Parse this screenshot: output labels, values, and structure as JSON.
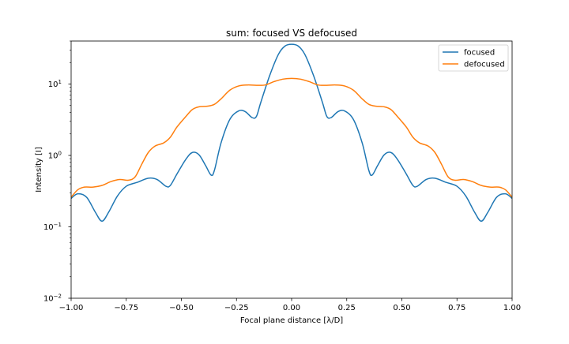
{
  "chart_data": {
    "type": "line",
    "title": "sum: focused VS defocused",
    "xlabel": "Focal plane distance [λ/D]",
    "ylabel": "Intensity [I]",
    "xlim": [
      -1.0,
      1.0
    ],
    "ylim": [
      0.01,
      40
    ],
    "yscale": "log",
    "grid": false,
    "legend_position": "top-right",
    "x_ticks": [
      -1.0,
      -0.75,
      -0.5,
      -0.25,
      0.0,
      0.25,
      0.5,
      0.75,
      1.0
    ],
    "x_tick_labels": [
      "−1.00",
      "−0.75",
      "−0.50",
      "−0.25",
      "0.00",
      "0.25",
      "0.50",
      "0.75",
      "1.00"
    ],
    "y_ticks": [
      0.01,
      0.1,
      1,
      10
    ],
    "y_tick_labels": [
      {
        "base": "10",
        "exp": "−2"
      },
      {
        "base": "10",
        "exp": "−1"
      },
      {
        "base": "10",
        "exp": "0"
      },
      {
        "base": "10",
        "exp": "1"
      }
    ],
    "series": [
      {
        "name": "focused",
        "color": "#1f77b4",
        "points": [
          [
            -1.0,
            0.25
          ],
          [
            -0.97,
            0.29
          ],
          [
            -0.93,
            0.26
          ],
          [
            -0.89,
            0.16
          ],
          [
            -0.86,
            0.12
          ],
          [
            -0.83,
            0.16
          ],
          [
            -0.79,
            0.27
          ],
          [
            -0.75,
            0.37
          ],
          [
            -0.7,
            0.42
          ],
          [
            -0.65,
            0.48
          ],
          [
            -0.61,
            0.46
          ],
          [
            -0.57,
            0.37
          ],
          [
            -0.55,
            0.38
          ],
          [
            -0.52,
            0.55
          ],
          [
            -0.48,
            0.88
          ],
          [
            -0.45,
            1.1
          ],
          [
            -0.42,
            1.02
          ],
          [
            -0.39,
            0.72
          ],
          [
            -0.365,
            0.53
          ],
          [
            -0.35,
            0.62
          ],
          [
            -0.32,
            1.5
          ],
          [
            -0.28,
            3.2
          ],
          [
            -0.24,
            4.2
          ],
          [
            -0.21,
            4.1
          ],
          [
            -0.18,
            3.4
          ],
          [
            -0.16,
            3.5
          ],
          [
            -0.14,
            5.5
          ],
          [
            -0.1,
            13
          ],
          [
            -0.06,
            26
          ],
          [
            -0.03,
            34
          ],
          [
            0.0,
            36
          ],
          [
            0.03,
            34
          ],
          [
            0.06,
            26
          ],
          [
            0.1,
            13
          ],
          [
            0.14,
            5.5
          ],
          [
            0.16,
            3.5
          ],
          [
            0.18,
            3.4
          ],
          [
            0.21,
            4.1
          ],
          [
            0.24,
            4.2
          ],
          [
            0.28,
            3.2
          ],
          [
            0.32,
            1.5
          ],
          [
            0.35,
            0.62
          ],
          [
            0.365,
            0.53
          ],
          [
            0.39,
            0.72
          ],
          [
            0.42,
            1.02
          ],
          [
            0.45,
            1.1
          ],
          [
            0.48,
            0.88
          ],
          [
            0.52,
            0.55
          ],
          [
            0.55,
            0.38
          ],
          [
            0.57,
            0.37
          ],
          [
            0.61,
            0.46
          ],
          [
            0.65,
            0.48
          ],
          [
            0.7,
            0.42
          ],
          [
            0.75,
            0.37
          ],
          [
            0.79,
            0.27
          ],
          [
            0.83,
            0.16
          ],
          [
            0.86,
            0.12
          ],
          [
            0.89,
            0.16
          ],
          [
            0.93,
            0.26
          ],
          [
            0.97,
            0.29
          ],
          [
            1.0,
            0.25
          ]
        ]
      },
      {
        "name": "defocused",
        "color": "#ff7f0e",
        "points": [
          [
            -1.0,
            0.26
          ],
          [
            -0.97,
            0.33
          ],
          [
            -0.94,
            0.36
          ],
          [
            -0.9,
            0.36
          ],
          [
            -0.86,
            0.38
          ],
          [
            -0.82,
            0.43
          ],
          [
            -0.78,
            0.46
          ],
          [
            -0.74,
            0.45
          ],
          [
            -0.71,
            0.5
          ],
          [
            -0.68,
            0.75
          ],
          [
            -0.65,
            1.1
          ],
          [
            -0.62,
            1.35
          ],
          [
            -0.58,
            1.5
          ],
          [
            -0.55,
            1.8
          ],
          [
            -0.52,
            2.5
          ],
          [
            -0.48,
            3.5
          ],
          [
            -0.45,
            4.4
          ],
          [
            -0.42,
            4.8
          ],
          [
            -0.38,
            4.9
          ],
          [
            -0.35,
            5.2
          ],
          [
            -0.32,
            6.2
          ],
          [
            -0.28,
            8.2
          ],
          [
            -0.24,
            9.4
          ],
          [
            -0.2,
            9.7
          ],
          [
            -0.16,
            9.6
          ],
          [
            -0.12,
            9.7
          ],
          [
            -0.08,
            10.8
          ],
          [
            -0.04,
            11.7
          ],
          [
            0.0,
            12.0
          ],
          [
            0.04,
            11.7
          ],
          [
            0.08,
            10.8
          ],
          [
            0.12,
            9.7
          ],
          [
            0.16,
            9.6
          ],
          [
            0.2,
            9.7
          ],
          [
            0.24,
            9.4
          ],
          [
            0.28,
            8.2
          ],
          [
            0.32,
            6.2
          ],
          [
            0.35,
            5.2
          ],
          [
            0.38,
            4.9
          ],
          [
            0.42,
            4.8
          ],
          [
            0.45,
            4.4
          ],
          [
            0.48,
            3.5
          ],
          [
            0.52,
            2.5
          ],
          [
            0.55,
            1.8
          ],
          [
            0.58,
            1.5
          ],
          [
            0.62,
            1.35
          ],
          [
            0.65,
            1.1
          ],
          [
            0.68,
            0.75
          ],
          [
            0.71,
            0.5
          ],
          [
            0.74,
            0.45
          ],
          [
            0.78,
            0.46
          ],
          [
            0.82,
            0.43
          ],
          [
            0.86,
            0.38
          ],
          [
            0.9,
            0.36
          ],
          [
            0.94,
            0.36
          ],
          [
            0.97,
            0.33
          ],
          [
            1.0,
            0.26
          ]
        ]
      }
    ]
  }
}
